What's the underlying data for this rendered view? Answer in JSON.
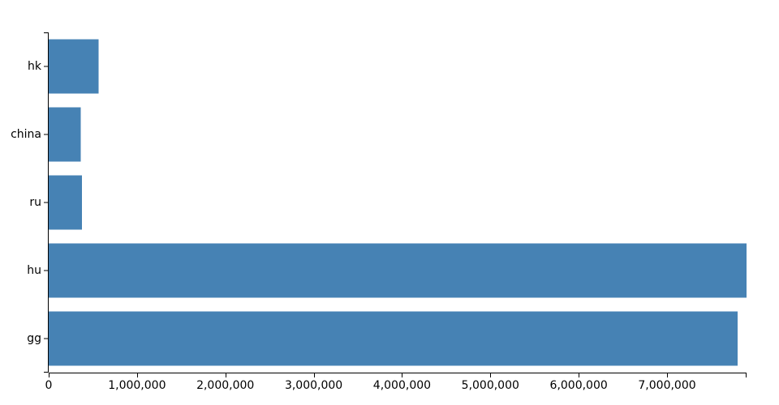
{
  "chart_data": {
    "type": "bar",
    "orientation": "horizontal",
    "title": "",
    "xlabel": "",
    "ylabel": "",
    "categories": [
      "hk",
      "china",
      "ru",
      "hu",
      "gg"
    ],
    "values": [
      565000,
      365000,
      375000,
      7900000,
      7800000
    ],
    "xlim": [
      0,
      7900000
    ],
    "x_ticks": [
      0,
      1000000,
      2000000,
      3000000,
      4000000,
      5000000,
      6000000,
      7000000
    ],
    "x_tick_labels": [
      "0",
      "1,000,000",
      "2,000,000",
      "3,000,000",
      "4,000,000",
      "5,000,000",
      "6,000,000",
      "7,000,000"
    ],
    "bar_color": "#4682b4",
    "grid": false,
    "legend": "none"
  }
}
